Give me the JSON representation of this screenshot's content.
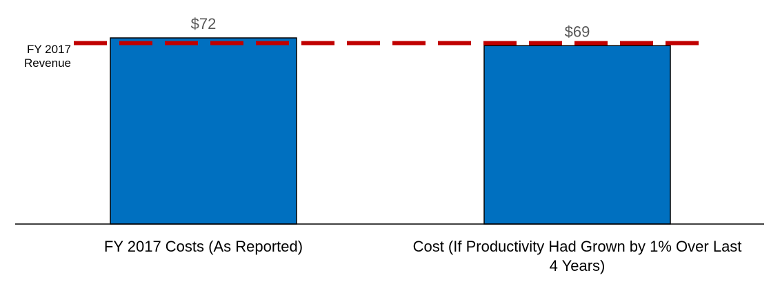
{
  "chart_data": {
    "type": "bar",
    "categories": [
      "FY 2017 Costs (As Reported)",
      "Cost (If Productivity Had Grown by 1% Over Last 4 Years)"
    ],
    "category_label_lines": [
      [
        "FY 2017 Costs (As Reported)"
      ],
      [
        "Cost (If Productivity Had Grown by 1% Over Last",
        "4 Years)"
      ]
    ],
    "values": [
      72,
      69
    ],
    "data_labels": [
      "$72",
      "$69"
    ],
    "reference_line": {
      "value": 70,
      "label_lines": [
        "FY 2017",
        "Revenue"
      ],
      "style": "dashed",
      "color": "#C00000"
    },
    "bar_color": "#0070C0",
    "bar_border_color": "#000000",
    "axis_color": "#000000",
    "value_label_color": "#595959",
    "grid": false,
    "legend": "none",
    "ylim": [
      0,
      75
    ]
  }
}
